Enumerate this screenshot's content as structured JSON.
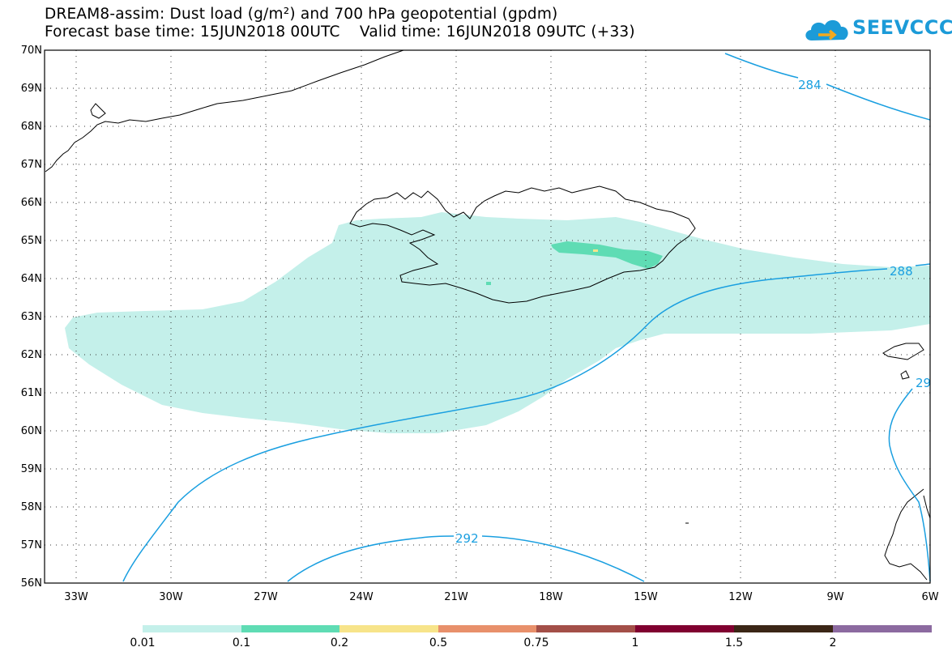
{
  "title_line1": "DREAM8-assim: Dust load (g/m²) and 700 hPa geopotential (gpdm)",
  "title_line2": "Forecast base time: 15JUN2018 00UTC    Valid time: 16JUN2018 09UTC (+33)",
  "logo": {
    "name": "cloud-logo-icon",
    "text": "SEEVCCC"
  },
  "map": {
    "lat_labels": [
      "70N",
      "69N",
      "68N",
      "67N",
      "66N",
      "65N",
      "64N",
      "63N",
      "62N",
      "61N",
      "60N",
      "59N",
      "58N",
      "57N",
      "56N"
    ],
    "lon_labels": [
      "33W",
      "30W",
      "27W",
      "24W",
      "21W",
      "18W",
      "15W",
      "12W",
      "9W",
      "6W"
    ],
    "contour_labels": [
      "284",
      "288",
      "292",
      "29"
    ],
    "contour_color": "#1a9fe0",
    "coast_color": "#000000",
    "grid": "dotted"
  },
  "colorbar": {
    "labels": [
      "0.01",
      "0.1",
      "0.2",
      "0.5",
      "0.75",
      "1",
      "1.5",
      "2"
    ],
    "colors": [
      "#c4f0ea",
      "#5fdcb4",
      "#f7e48a",
      "#e8906b",
      "#a34f48",
      "#800030",
      "#3b2616",
      "#8c6aa0"
    ]
  }
}
